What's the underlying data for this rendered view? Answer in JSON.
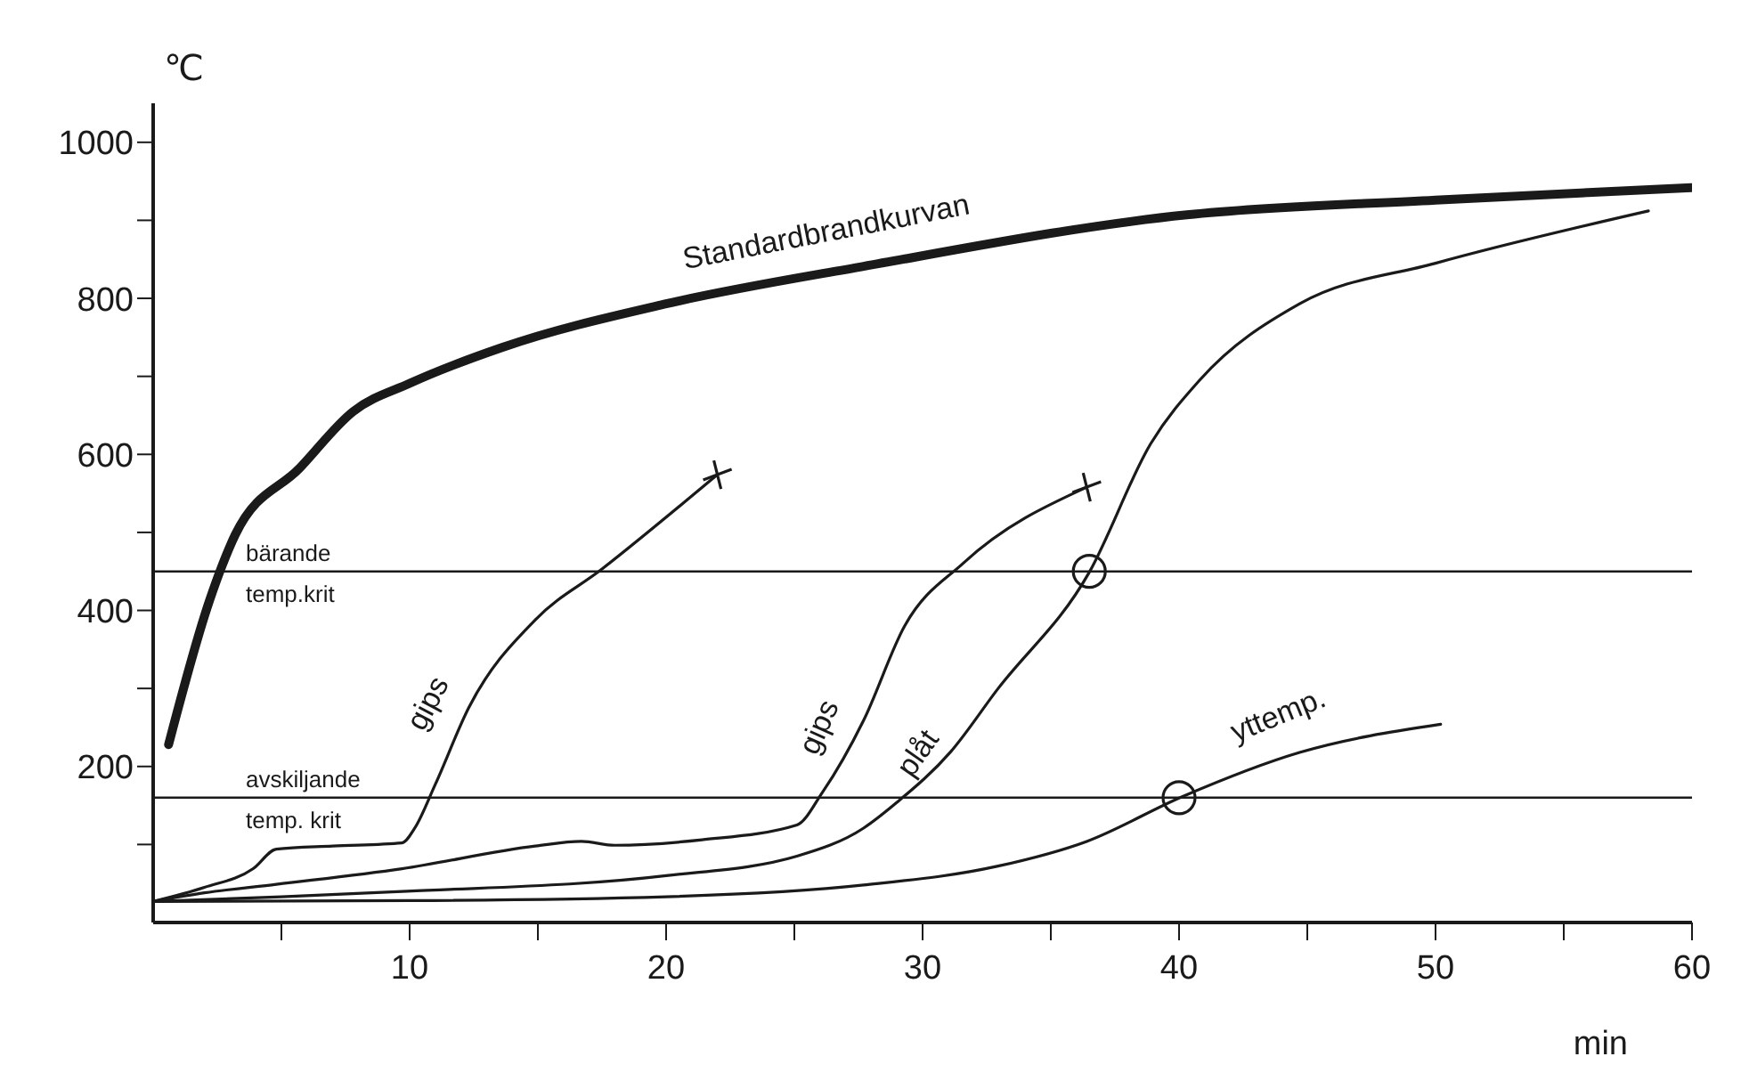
{
  "chart_data": {
    "type": "line",
    "xlabel": "min",
    "ylabel": "℃",
    "xlim": [
      0,
      60
    ],
    "ylim": [
      0,
      1050
    ],
    "xticks": [
      {
        "value": 5,
        "label": null
      },
      10,
      {
        "value": 15,
        "label": null
      },
      20,
      {
        "value": 25,
        "label": null
      },
      30,
      {
        "value": 35,
        "label": null
      },
      40,
      {
        "value": 45,
        "label": null
      },
      50,
      {
        "value": 55,
        "label": null
      },
      60
    ],
    "yticks": [
      {
        "value": 100,
        "label": null
      },
      200,
      {
        "value": 300,
        "label": null
      },
      400,
      {
        "value": 500,
        "label": null
      },
      600,
      {
        "value": 700,
        "label": null
      },
      800,
      {
        "value": 900,
        "label": null
      },
      1000
    ],
    "grid": false,
    "legend": false,
    "marker": "none",
    "line_style": "solid",
    "series": [
      {
        "name": "Standardbrandkurvan",
        "color": "#1a1a1a",
        "x": [
          0.6,
          2.2,
          3.2,
          5.7,
          7.8,
          10,
          13.6,
          20,
          27.7,
          40.3,
          50,
          60
        ],
        "values": [
          228,
          413,
          497,
          582,
          655,
          691,
          737,
          793,
          841,
          907,
          926,
          942
        ]
      },
      {
        "name": "gips",
        "color": "#1a1a1a",
        "x": [
          0,
          2,
          3.9,
          4.8,
          7,
          9.7,
          10.2,
          11,
          12.3,
          14.9,
          17.5,
          22
        ],
        "values": [
          27,
          45,
          69,
          94,
          98,
          102,
          121,
          177,
          275,
          388,
          453,
          574
        ]
      },
      {
        "name": "gips",
        "color": "#1a1a1a",
        "x": [
          0,
          2,
          4.8,
          9.7,
          14.9,
          16.7,
          18,
          21.4,
          25.1,
          26.1,
          27.7,
          29.3,
          31.6,
          36.4
        ],
        "values": [
          27,
          38,
          49,
          69,
          98,
          104,
          99,
          106,
          125,
          167,
          259,
          380,
          461,
          558
        ]
      },
      {
        "name": "plåt",
        "color": "#1a1a1a",
        "x": [
          0,
          5,
          9.9,
          20,
          25.1,
          27.7,
          29,
          31.1,
          32.9,
          36.5,
          38.9,
          40.8,
          44.7,
          50,
          58.3
        ],
        "values": [
          27,
          33,
          40,
          60,
          85,
          121,
          154,
          219,
          298,
          449,
          614,
          695,
          793,
          845,
          912
        ]
      },
      {
        "name": "yttemp.",
        "color": "#1a1a1a",
        "x": [
          0,
          10,
          20,
          27.7,
          32.9,
          36.4,
          40.1,
          44.7,
          50.2
        ],
        "values": [
          27,
          28,
          33,
          48,
          72,
          104,
          161,
          218,
          254
        ]
      },
      {
        "type": "scatter",
        "marker": "circle",
        "color": "#1a1a1a",
        "x": [
          36.5,
          40
        ],
        "values": [
          450,
          160
        ]
      },
      {
        "type": "scatter",
        "marker": "cross",
        "color": "#1a1a1a",
        "x": [
          22,
          36.4
        ],
        "values": [
          574,
          558
        ]
      }
    ],
    "ref_lines": [
      {
        "axis": "y",
        "value": 450,
        "label": "bärande temp.krit"
      },
      {
        "axis": "y",
        "value": 160,
        "label": "avskiljande temp. krit"
      }
    ]
  }
}
